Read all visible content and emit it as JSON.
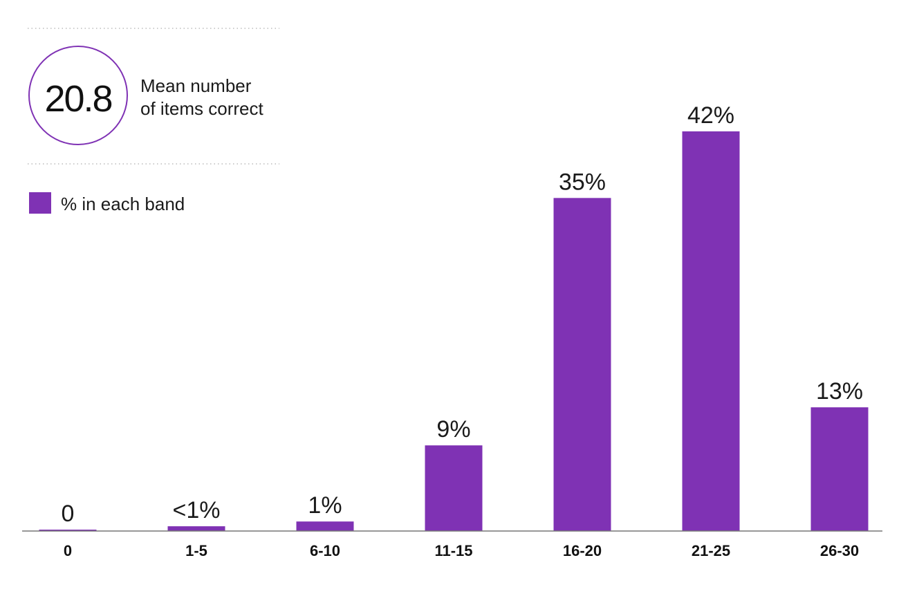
{
  "summary": {
    "mean_value": "20.8",
    "mean_label_line1": "Mean number",
    "mean_label_line2": "of items correct"
  },
  "colors": {
    "bar": "#7f32b4",
    "circle_stroke": "#7f32b4",
    "axis": "#777777",
    "divider": "#bbbbbb"
  },
  "chart_data": {
    "type": "bar",
    "categories": [
      "0",
      "1-5",
      "6-10",
      "11-15",
      "16-20",
      "21-25",
      "26-30"
    ],
    "series": [
      {
        "name": "% in each band",
        "values": [
          0,
          0.5,
          1,
          9,
          35,
          42,
          13
        ],
        "labels": [
          "0",
          "<1%",
          "1%",
          "9%",
          "35%",
          "42%",
          "13%"
        ]
      }
    ],
    "legend": {
      "position": "top-left",
      "entries": [
        "% in each band"
      ]
    },
    "ylim": [
      0,
      42
    ],
    "grid": false,
    "title": "",
    "xlabel": "",
    "ylabel": ""
  }
}
